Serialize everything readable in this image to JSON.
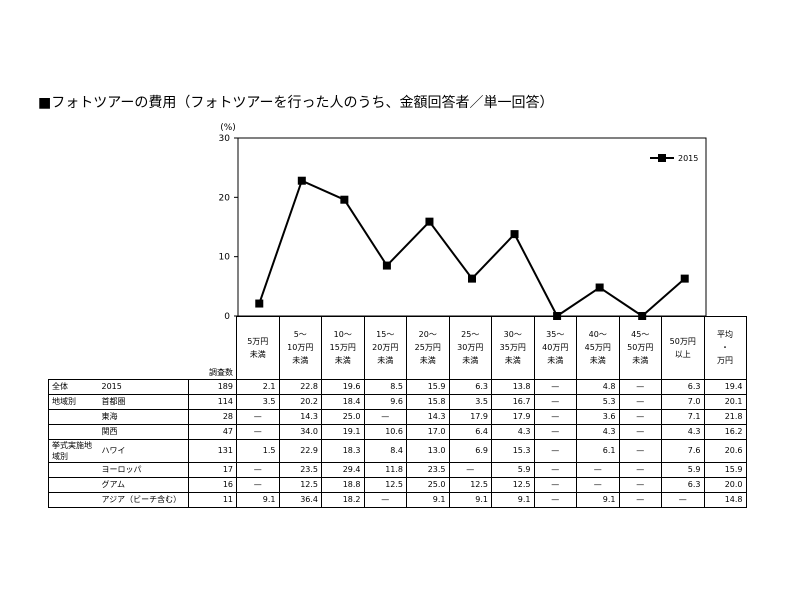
{
  "title": "■フォトツアーの費用（フォトツアーを行った人のうち、金額回答者／単一回答）",
  "chart_data": {
    "type": "line",
    "unit_label": "(%)",
    "ylim": [
      0,
      30
    ],
    "yticks": [
      0,
      10,
      20,
      30
    ],
    "categories": [
      "5万円未満",
      "5～10万円未満",
      "10～15万円未満",
      "15～20万円未満",
      "20～25万円未満",
      "25～30万円未満",
      "30～35万円未満",
      "35～40万円未満",
      "40～45万円未満",
      "45～50万円未満",
      "50万円以上"
    ],
    "series": [
      {
        "name": "2015",
        "values": [
          2.1,
          22.8,
          19.6,
          8.5,
          15.9,
          6.3,
          13.8,
          0,
          4.8,
          0,
          6.3
        ]
      }
    ],
    "legend": "top-right",
    "grid": false
  },
  "table": {
    "col_headers": [
      [
        "5万円",
        "未満"
      ],
      [
        "5～",
        "10万円",
        "未満"
      ],
      [
        "10～",
        "15万円",
        "未満"
      ],
      [
        "15～",
        "20万円",
        "未満"
      ],
      [
        "20～",
        "25万円",
        "未満"
      ],
      [
        "25～",
        "30万円",
        "未満"
      ],
      [
        "30～",
        "35万円",
        "未満"
      ],
      [
        "35～",
        "40万円",
        "未満"
      ],
      [
        "40～",
        "45万円",
        "未満"
      ],
      [
        "45～",
        "50万円",
        "未満"
      ],
      [
        "50万円",
        "以上"
      ],
      [
        "平均",
        "・",
        "万円"
      ]
    ],
    "count_header": "調査数",
    "rows": [
      {
        "group": "全体",
        "label": "2015",
        "n": "189",
        "values": [
          "2.1",
          "22.8",
          "19.6",
          "8.5",
          "15.9",
          "6.3",
          "13.8",
          "—",
          "4.8",
          "—",
          "6.3",
          "19.4"
        ]
      },
      {
        "group": "地域別",
        "label": "首都圏",
        "n": "114",
        "values": [
          "3.5",
          "20.2",
          "18.4",
          "9.6",
          "15.8",
          "3.5",
          "16.7",
          "—",
          "5.3",
          "—",
          "7.0",
          "20.1"
        ]
      },
      {
        "group": "",
        "label": "東海",
        "n": "28",
        "values": [
          "—",
          "14.3",
          "25.0",
          "—",
          "14.3",
          "17.9",
          "17.9",
          "—",
          "3.6",
          "—",
          "7.1",
          "21.8"
        ]
      },
      {
        "group": "",
        "label": "関西",
        "n": "47",
        "values": [
          "—",
          "34.0",
          "19.1",
          "10.6",
          "17.0",
          "6.4",
          "4.3",
          "—",
          "4.3",
          "—",
          "4.3",
          "16.2"
        ]
      },
      {
        "group": "挙式実施地域別",
        "label": "ハワイ",
        "n": "131",
        "values": [
          "1.5",
          "22.9",
          "18.3",
          "8.4",
          "13.0",
          "6.9",
          "15.3",
          "—",
          "6.1",
          "—",
          "7.6",
          "20.6"
        ]
      },
      {
        "group": "",
        "label": "ヨーロッパ",
        "n": "17",
        "values": [
          "—",
          "23.5",
          "29.4",
          "11.8",
          "23.5",
          "—",
          "5.9",
          "—",
          "—",
          "—",
          "5.9",
          "15.9"
        ]
      },
      {
        "group": "",
        "label": "グアム",
        "n": "16",
        "values": [
          "—",
          "12.5",
          "18.8",
          "12.5",
          "25.0",
          "12.5",
          "12.5",
          "—",
          "—",
          "—",
          "6.3",
          "20.0"
        ]
      },
      {
        "group": "",
        "label": "アジア（ビーチ含む）",
        "n": "11",
        "values": [
          "9.1",
          "36.4",
          "18.2",
          "—",
          "9.1",
          "9.1",
          "9.1",
          "—",
          "9.1",
          "—",
          "—",
          "14.8"
        ]
      }
    ]
  }
}
